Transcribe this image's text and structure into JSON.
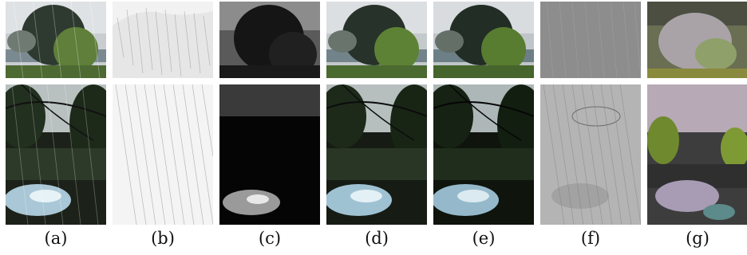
{
  "figure": {
    "columns": [
      {
        "caption": "(a)",
        "variant": "rainy-input"
      },
      {
        "caption": "(b)",
        "variant": "rain-streak-map"
      },
      {
        "caption": "(c)",
        "variant": "dark-background-layer"
      },
      {
        "caption": "(d)",
        "variant": "derained-result"
      },
      {
        "caption": "(e)",
        "variant": "derained-alternative"
      },
      {
        "caption": "(f)",
        "variant": "gray-residual"
      },
      {
        "caption": "(g)",
        "variant": "false-color-residual"
      }
    ]
  }
}
